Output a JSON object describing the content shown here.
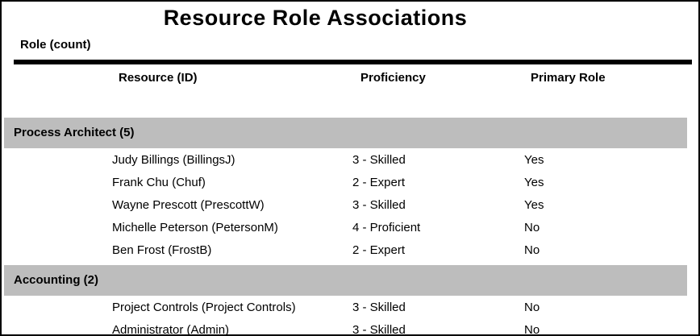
{
  "report": {
    "title": "Resource Role Associations",
    "group_column_label": "Role (count)",
    "columns": {
      "resource": "Resource (ID)",
      "proficiency": "Proficiency",
      "primary_role": "Primary Role"
    },
    "groups": [
      {
        "label": "Process Architect (5)",
        "rows": [
          {
            "resource": "Judy Billings (BillingsJ)",
            "proficiency": "3 - Skilled",
            "primary_role": "Yes"
          },
          {
            "resource": "Frank Chu (Chuf)",
            "proficiency": "2 - Expert",
            "primary_role": "Yes"
          },
          {
            "resource": "Wayne Prescott (PrescottW)",
            "proficiency": "3 - Skilled",
            "primary_role": "Yes"
          },
          {
            "resource": "Michelle Peterson (PetersonM)",
            "proficiency": "4 - Proficient",
            "primary_role": "No"
          },
          {
            "resource": "Ben Frost (FrostB)",
            "proficiency": "2 - Expert",
            "primary_role": "No"
          }
        ]
      },
      {
        "label": "Accounting (2)",
        "rows": [
          {
            "resource": "Project Controls (Project Controls)",
            "proficiency": "3 - Skilled",
            "primary_role": "No"
          },
          {
            "resource": "Administrator (Admin)",
            "proficiency": "3 - Skilled",
            "primary_role": "No"
          }
        ]
      }
    ]
  },
  "colors": {
    "background": "#ffffff",
    "text": "#000000",
    "group_band": "#bdbdbd",
    "rule": "#000000",
    "border": "#000000"
  }
}
